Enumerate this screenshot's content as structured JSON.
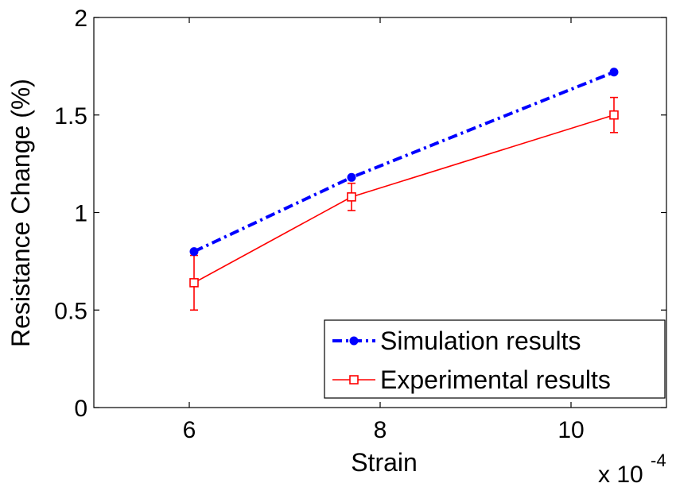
{
  "chart_data": {
    "type": "line",
    "xlabel": "Strain",
    "ylabel": "Resistance Change (%)",
    "x_multiplier": "x 10",
    "x_multiplier_exponent": "-4",
    "xlim": [
      5,
      11
    ],
    "ylim": [
      0,
      2
    ],
    "xticks": [
      6,
      8,
      10
    ],
    "yticks": [
      0,
      0.5,
      1,
      1.5,
      2
    ],
    "xtick_labels": [
      "6",
      "8",
      "10"
    ],
    "ytick_labels": [
      "0",
      "0.5",
      "1",
      "1.5",
      "2"
    ],
    "grid": false,
    "legend_position": "bottom-right",
    "series": [
      {
        "name": "Simulation results",
        "color": "#0000ff",
        "line_style": "dash-dot",
        "marker": "filled-circle",
        "x": [
          6.05,
          7.7,
          10.45
        ],
        "y": [
          0.8,
          1.18,
          1.72
        ]
      },
      {
        "name": "Experimental results",
        "color": "#ff0000",
        "line_style": "solid",
        "marker": "open-square",
        "x": [
          6.05,
          7.7,
          10.45
        ],
        "y": [
          0.64,
          1.08,
          1.5
        ],
        "error": [
          0.14,
          0.07,
          0.09
        ]
      }
    ]
  }
}
